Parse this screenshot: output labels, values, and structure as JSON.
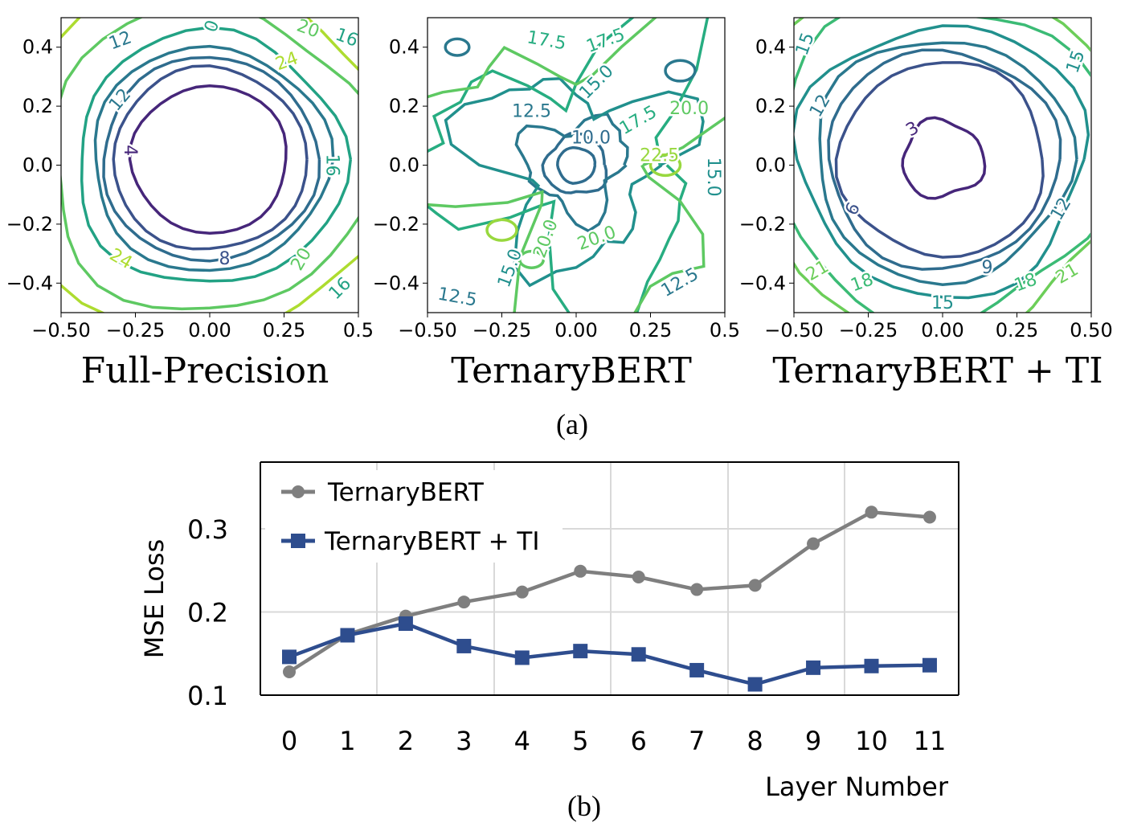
{
  "chart_data": [
    {
      "type": "contour",
      "title": "Full-Precision",
      "xlim": [
        -0.5,
        0.5
      ],
      "ylim": [
        -0.5,
        0.5
      ],
      "xticks": [
        "−0.50",
        "−0.25",
        "0.00",
        "0.25",
        "0.5"
      ],
      "yticks": [
        "0.4",
        "0.2",
        "0.0",
        "−0.2",
        "−0.4"
      ],
      "contour_labels": [
        "4",
        "8",
        "12",
        "12",
        "16",
        "16",
        "16",
        "20",
        "20",
        "24",
        "24",
        "0"
      ],
      "colormap": "viridis"
    },
    {
      "type": "contour",
      "title": "TernaryBERT",
      "xlim": [
        -0.5,
        0.5
      ],
      "ylim": [
        -0.5,
        0.5
      ],
      "xticks": [
        "−0.50",
        "−0.25",
        "0.00",
        "0.25",
        "0.5"
      ],
      "yticks": [
        "0.4",
        "0.2",
        "0.0",
        "−0.2",
        "−0.4"
      ],
      "contour_labels": [
        "10.0",
        "12.5",
        "12.5",
        "12.5",
        "15.0",
        "15.0",
        "15.0",
        "17.5",
        "17.5",
        "17.5",
        "20.0",
        "20.0",
        "20.0",
        "22.5"
      ],
      "colormap": "viridis"
    },
    {
      "type": "contour",
      "title": "TernaryBERT + TI",
      "xlim": [
        -0.5,
        0.5
      ],
      "ylim": [
        -0.5,
        0.5
      ],
      "xticks": [
        "−0.50",
        "−0.25",
        "0.00",
        "0.25",
        "0.50"
      ],
      "yticks": [
        "0.4",
        "0.2",
        "0.0",
        "−0.2",
        "−0.4"
      ],
      "contour_labels": [
        "3",
        "6",
        "9",
        "12",
        "12",
        "15",
        "15",
        "15",
        "18",
        "18",
        "21",
        "21"
      ],
      "colormap": "viridis"
    },
    {
      "type": "line",
      "xlabel": "Layer Number",
      "ylabel": "MSE Loss",
      "categories": [
        "0",
        "1",
        "2",
        "3",
        "4",
        "5",
        "6",
        "7",
        "8",
        "9",
        "10",
        "11"
      ],
      "yticks": [
        "0.1",
        "0.2",
        "0.3"
      ],
      "ylim": [
        0.1,
        0.38
      ],
      "grid": true,
      "legend_position": "top-left",
      "series": [
        {
          "name": "TernaryBERT",
          "color": "#7f7f7f",
          "marker": "circle",
          "values": [
            0.128,
            0.173,
            0.195,
            0.212,
            0.224,
            0.249,
            0.242,
            0.227,
            0.232,
            0.282,
            0.32,
            0.314
          ]
        },
        {
          "name": "TernaryBERT + TI",
          "color": "#2e4d8e",
          "marker": "square",
          "values": [
            0.146,
            0.172,
            0.186,
            0.159,
            0.145,
            0.153,
            0.149,
            0.13,
            0.113,
            0.133,
            0.135,
            0.136
          ]
        }
      ]
    }
  ],
  "captions": {
    "a": "(a)",
    "b": "(b)"
  }
}
